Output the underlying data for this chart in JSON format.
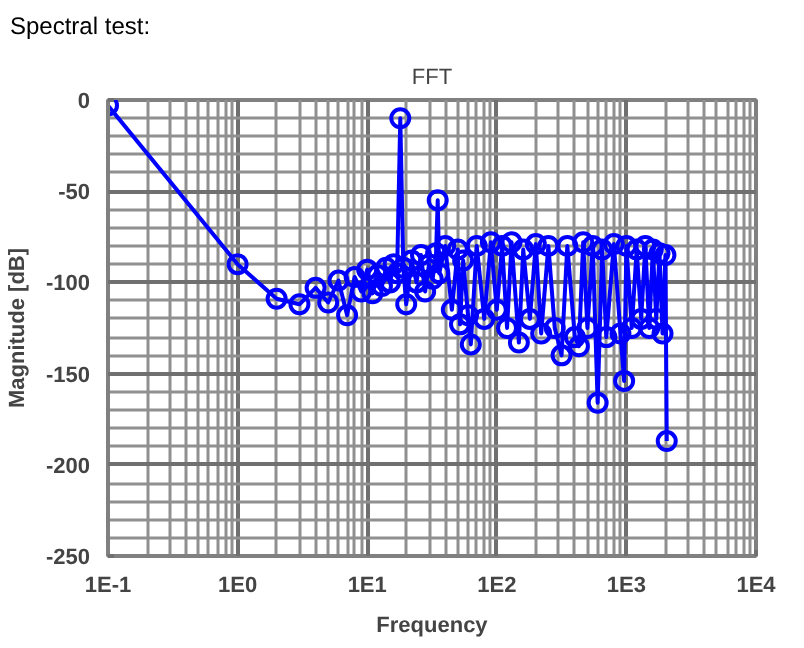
{
  "chart_data": {
    "type": "line",
    "title": "FFT",
    "annotations": [
      "Spectral test:"
    ],
    "xlabel": "Frequency",
    "ylabel": "Magnitude [dB]",
    "x": [
      0.1,
      1,
      2,
      3,
      4,
      5,
      6,
      7,
      8,
      9,
      10,
      11,
      12,
      13,
      14,
      15,
      16,
      17,
      18,
      19,
      20,
      22,
      24,
      26,
      28,
      30,
      32,
      34,
      35,
      36,
      40,
      45,
      50,
      52,
      55,
      60,
      63,
      70,
      80,
      90,
      100,
      110,
      120,
      130,
      148,
      160,
      180,
      200,
      220,
      250,
      280,
      316,
      350,
      400,
      430,
      464,
      500,
      550,
      600,
      650,
      700,
      800,
      900,
      960,
      1000,
      1100,
      1200,
      1300,
      1400,
      1500,
      1600,
      1700,
      1800,
      1900,
      2000,
      2048
    ],
    "series": [
      {
        "color": "#0000ff",
        "values": [
          -3,
          -90,
          -109,
          -112,
          -103,
          -111,
          -99,
          -118,
          -97,
          -105,
          -93,
          -106,
          -96,
          -102,
          -92,
          -100,
          -90,
          -95,
          -10,
          -92,
          -112,
          -88,
          -100,
          -85,
          -105,
          -90,
          -98,
          -84,
          -55,
          -95,
          -80,
          -115,
          -82,
          -123,
          -88,
          -118,
          -134,
          -80,
          -120,
          -78,
          -115,
          -80,
          -125,
          -78,
          -133,
          -82,
          -120,
          -79,
          -128,
          -80,
          -125,
          -140,
          -80,
          -130,
          -135,
          -78,
          -125,
          -80,
          -166,
          -82,
          -130,
          -79,
          -128,
          -154,
          -80,
          -125,
          -82,
          -120,
          -80,
          -125,
          -82,
          -120,
          -84,
          -128,
          -85,
          -187
        ]
      }
    ],
    "log": "x",
    "xlim": [
      0.1,
      10000
    ],
    "ylim": [
      -250,
      0
    ],
    "xticks": [
      {
        "value": 0.1,
        "label": "1E-1"
      },
      {
        "value": 1,
        "label": "1E0"
      },
      {
        "value": 10,
        "label": "1E1"
      },
      {
        "value": 100,
        "label": "1E2"
      },
      {
        "value": 1000,
        "label": "1E3"
      },
      {
        "value": 10000,
        "label": "1E4"
      }
    ],
    "yticks": [
      -250,
      -200,
      -150,
      -100,
      -50,
      0
    ],
    "grid": true,
    "marker": "circle",
    "line_style": "solid"
  }
}
